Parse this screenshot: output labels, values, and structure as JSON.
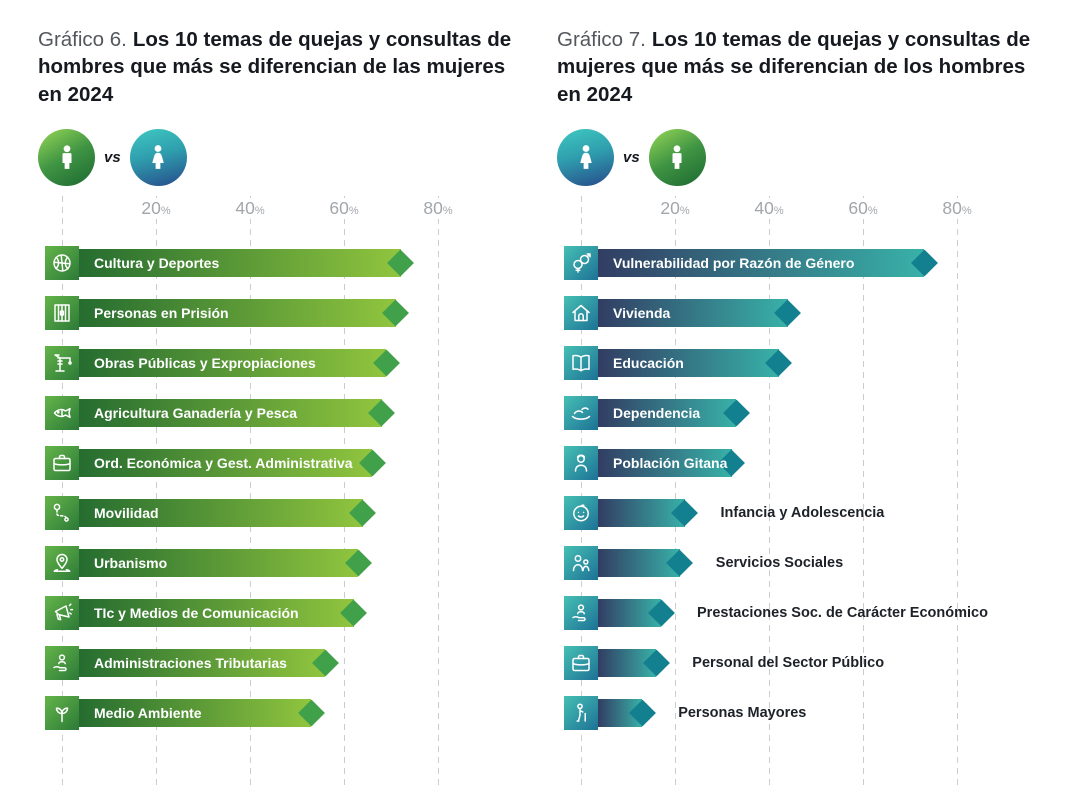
{
  "vs_label": "vs",
  "percent_symbol": "%",
  "axis_ticks": [
    20,
    40,
    60,
    80
  ],
  "colors": {
    "men_bar_start": "#256c30",
    "men_bar_end": "#90c53e",
    "men_tip": "#41a04a",
    "women_bar_start": "#323d63",
    "women_bar_end": "#38b1a8",
    "women_tip": "#13808f",
    "title_prefix": "#54575d",
    "title_main": "#16191f",
    "axis_text": "#a2a6ab",
    "gridline": "#c9ccd0"
  },
  "charts": [
    {
      "title_prefix": "Gráfico 6.",
      "title_main": "Los 10 temas de quejas y consultas de hombres que más se diferencian de las mujeres en 2024",
      "vs_icons": [
        "male-circle-icon",
        "female-circle-icon"
      ],
      "bars": [
        {
          "label": "Cultura y Deportes",
          "icon": "basketball-icon",
          "value": 75,
          "label_inside": true
        },
        {
          "label": "Personas en Prisión",
          "icon": "prison-icon",
          "value": 74,
          "label_inside": true
        },
        {
          "label": "Obras Públicas y Expropiaciones",
          "icon": "crane-icon",
          "value": 72,
          "label_inside": true
        },
        {
          "label": "Agricultura Ganadería y Pesca",
          "icon": "fish-icon",
          "value": 71,
          "label_inside": true
        },
        {
          "label": "Ord. Económica y Gest. Administrativa",
          "icon": "briefcase-icon",
          "value": 69,
          "label_inside": true
        },
        {
          "label": "Movilidad",
          "icon": "route-icon",
          "value": 67,
          "label_inside": true
        },
        {
          "label": "Urbanismo",
          "icon": "map-pin-icon",
          "value": 66,
          "label_inside": true
        },
        {
          "label": "TIc y Medios de Comunicación",
          "icon": "megaphone-icon",
          "value": 65,
          "label_inside": true
        },
        {
          "label": "Administraciones Tributarias",
          "icon": "hand-person-icon",
          "value": 59,
          "label_inside": true
        },
        {
          "label": "Medio Ambiente",
          "icon": "sprout-icon",
          "value": 56,
          "label_inside": true
        }
      ]
    },
    {
      "title_prefix": "Gráfico 7.",
      "title_main": "Los 10 temas de quejas y consultas de mujeres que más se diferencian de los hombres en 2024",
      "vs_icons": [
        "female-circle-icon",
        "male-circle-icon"
      ],
      "bars": [
        {
          "label": "Vulnerabilidad por Razón de Género",
          "icon": "gender-icon",
          "value": 76,
          "label_inside": true
        },
        {
          "label": "Vivienda",
          "icon": "house-icon",
          "value": 47,
          "label_inside": true
        },
        {
          "label": "Educación",
          "icon": "book-icon",
          "value": 45,
          "label_inside": true
        },
        {
          "label": "Dependencia",
          "icon": "caring-hands-icon",
          "value": 36,
          "label_inside": true
        },
        {
          "label": "Población Gitana",
          "icon": "woman-icon",
          "value": 35,
          "label_inside": true
        },
        {
          "label": "Infancia y Adolescencia",
          "icon": "baby-icon",
          "value": 25,
          "label_inside": false
        },
        {
          "label": "Servicios Sociales",
          "icon": "people-icon",
          "value": 24,
          "label_inside": false
        },
        {
          "label": "Prestaciones Soc. de Carácter Económico",
          "icon": "hand-person-icon",
          "value": 20,
          "label_inside": false
        },
        {
          "label": "Personal del Sector Público",
          "icon": "briefcase-icon",
          "value": 19,
          "label_inside": false
        },
        {
          "label": "Personas Mayores",
          "icon": "elder-icon",
          "value": 16,
          "label_inside": false
        }
      ]
    }
  ],
  "chart_data": [
    {
      "type": "bar",
      "orientation": "horizontal",
      "title": "Gráfico 6. Los 10 temas de quejas y consultas de hombres que más se diferencian de las mujeres en 2024",
      "categories": [
        "Cultura y Deportes",
        "Personas en Prisión",
        "Obras Públicas y Expropiaciones",
        "Agricultura Ganadería y Pesca",
        "Ord. Económica y Gest. Administrativa",
        "Movilidad",
        "Urbanismo",
        "TIc y Medios de Comunicación",
        "Administraciones Tributarias",
        "Medio Ambiente"
      ],
      "values": [
        75,
        74,
        72,
        71,
        69,
        67,
        66,
        65,
        59,
        56
      ],
      "unit": "%",
      "xlabel": "",
      "ylabel": "",
      "xlim": [
        0,
        90
      ],
      "x_ticks": [
        20,
        40,
        60,
        80
      ],
      "grid": "dashed-vertical",
      "legend": "hombres vs mujeres",
      "series_color": "green gradient #256c30→#90c53e"
    },
    {
      "type": "bar",
      "orientation": "horizontal",
      "title": "Gráfico 7. Los 10 temas de quejas y consultas de mujeres que más se diferencian de los hombres en 2024",
      "categories": [
        "Vulnerabilidad por Razón de Género",
        "Vivienda",
        "Educación",
        "Dependencia",
        "Población Gitana",
        "Infancia y Adolescencia",
        "Servicios Sociales",
        "Prestaciones Soc. de Carácter Económico",
        "Personal del Sector Público",
        "Personas Mayores"
      ],
      "values": [
        76,
        47,
        45,
        36,
        35,
        25,
        24,
        20,
        19,
        16
      ],
      "unit": "%",
      "xlabel": "",
      "ylabel": "",
      "xlim": [
        0,
        90
      ],
      "x_ticks": [
        20,
        40,
        60,
        80
      ],
      "grid": "dashed-vertical",
      "legend": "mujeres vs hombres",
      "series_color": "navy-teal gradient #323d63→#38b1a8"
    }
  ]
}
